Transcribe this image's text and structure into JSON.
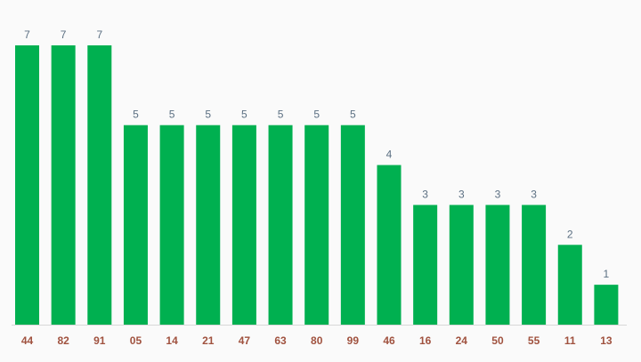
{
  "colors": {
    "bar": "#00b050",
    "value_label": "#5b6f82",
    "category_label": "#a0523f",
    "baseline": "#d8d8d8",
    "background": "#fafafa"
  },
  "chart_data": {
    "type": "bar",
    "title": "",
    "xlabel": "",
    "ylabel": "",
    "categories": [
      "44",
      "82",
      "91",
      "05",
      "14",
      "21",
      "47",
      "63",
      "80",
      "99",
      "46",
      "16",
      "24",
      "50",
      "55",
      "11",
      "13"
    ],
    "values": [
      7,
      7,
      7,
      5,
      5,
      5,
      5,
      5,
      5,
      5,
      4,
      3,
      3,
      3,
      3,
      2,
      1
    ],
    "ylim": [
      0,
      7
    ],
    "grid": false,
    "legend": "none",
    "data_labels": true
  }
}
